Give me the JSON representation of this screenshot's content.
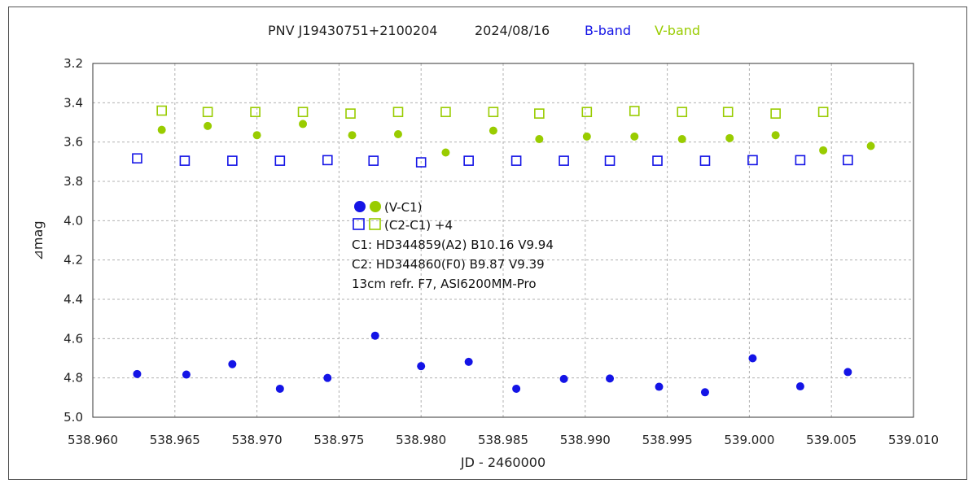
{
  "chart_data": {
    "type": "scatter",
    "title": {
      "object": "PNV J19430751+2100204",
      "date": "2024/08/16",
      "b_label": "B-band",
      "v_label": "V-band"
    },
    "xlabel": "JD - 2460000",
    "ylabel": "⊿mag",
    "xlim": [
      538.96,
      539.01
    ],
    "ylim": [
      3.2,
      5.0
    ],
    "y_inverted": true,
    "grid": true,
    "x_ticks": [
      "538.960",
      "538.965",
      "538.970",
      "538.975",
      "538.980",
      "538.985",
      "538.990",
      "538.995",
      "539.000",
      "539.005",
      "539.010"
    ],
    "x_tick_values": [
      538.96,
      538.965,
      538.97,
      538.975,
      538.98,
      538.985,
      538.99,
      538.995,
      539.0,
      539.005,
      539.01
    ],
    "y_ticks": [
      "3.2",
      "3.4",
      "3.6",
      "3.8",
      "4.0",
      "4.2",
      "4.4",
      "4.6",
      "4.8",
      "5.0"
    ],
    "y_tick_values": [
      3.2,
      3.4,
      3.6,
      3.8,
      4.0,
      4.2,
      4.4,
      4.6,
      4.8,
      5.0
    ],
    "colors": {
      "b_band": "#1414e6",
      "v_band": "#99cc00"
    },
    "series": [
      {
        "name": "B (V-C1)",
        "band": "B",
        "marker": "filled-circle",
        "x": [
          538.9627,
          538.9657,
          538.9685,
          538.9714,
          538.9743,
          538.9772,
          538.98,
          538.9829,
          538.9858,
          538.9887,
          538.9915,
          538.9945,
          538.9973,
          539.0002,
          539.0031,
          539.006
        ],
        "y": [
          4.78,
          4.783,
          4.73,
          4.855,
          4.8,
          4.585,
          4.74,
          4.718,
          4.855,
          4.805,
          4.803,
          4.845,
          4.873,
          4.7,
          4.843,
          4.77
        ]
      },
      {
        "name": "V (V-C1)",
        "band": "V",
        "marker": "filled-circle",
        "x": [
          538.9642,
          538.967,
          538.97,
          538.9728,
          538.9758,
          538.9786,
          538.9815,
          538.9844,
          538.9872,
          538.9901,
          538.993,
          538.9959,
          538.9988,
          539.0016,
          539.0045,
          539.0074
        ],
        "y": [
          3.538,
          3.518,
          3.565,
          3.508,
          3.565,
          3.56,
          3.653,
          3.542,
          3.585,
          3.572,
          3.572,
          3.585,
          3.58,
          3.565,
          3.642,
          3.62
        ]
      },
      {
        "name": "B (C2-C1)+4",
        "band": "B",
        "marker": "open-square",
        "x": [
          538.9627,
          538.9656,
          538.9685,
          538.9714,
          538.9743,
          538.9771,
          538.98,
          538.9829,
          538.9858,
          538.9887,
          538.9915,
          538.9944,
          538.9973,
          539.0002,
          539.0031,
          539.006
        ],
        "y": [
          3.683,
          3.695,
          3.695,
          3.695,
          3.692,
          3.695,
          3.703,
          3.695,
          3.695,
          3.695,
          3.695,
          3.695,
          3.695,
          3.692,
          3.692,
          3.692
        ]
      },
      {
        "name": "V (C2-C1)+4",
        "band": "V",
        "marker": "open-square",
        "x": [
          538.9642,
          538.967,
          538.9699,
          538.9728,
          538.9757,
          538.9786,
          538.9815,
          538.9844,
          538.9872,
          538.9901,
          538.993,
          538.9959,
          538.9987,
          539.0016,
          539.0045
        ],
        "y": [
          3.44,
          3.447,
          3.447,
          3.447,
          3.455,
          3.447,
          3.447,
          3.447,
          3.455,
          3.447,
          3.442,
          3.447,
          3.447,
          3.455,
          3.447
        ]
      }
    ],
    "legend": {
      "line1_label": "(V-C1)",
      "line2_label": "(C2-C1) +4",
      "c1": "C1: HD344859(A2)  B10.16   V9.94",
      "c2": "C2: HD344860(F0)  B9.87   V9.39",
      "instrument": "13cm refr. F7,  ASI6200MM-Pro"
    }
  }
}
